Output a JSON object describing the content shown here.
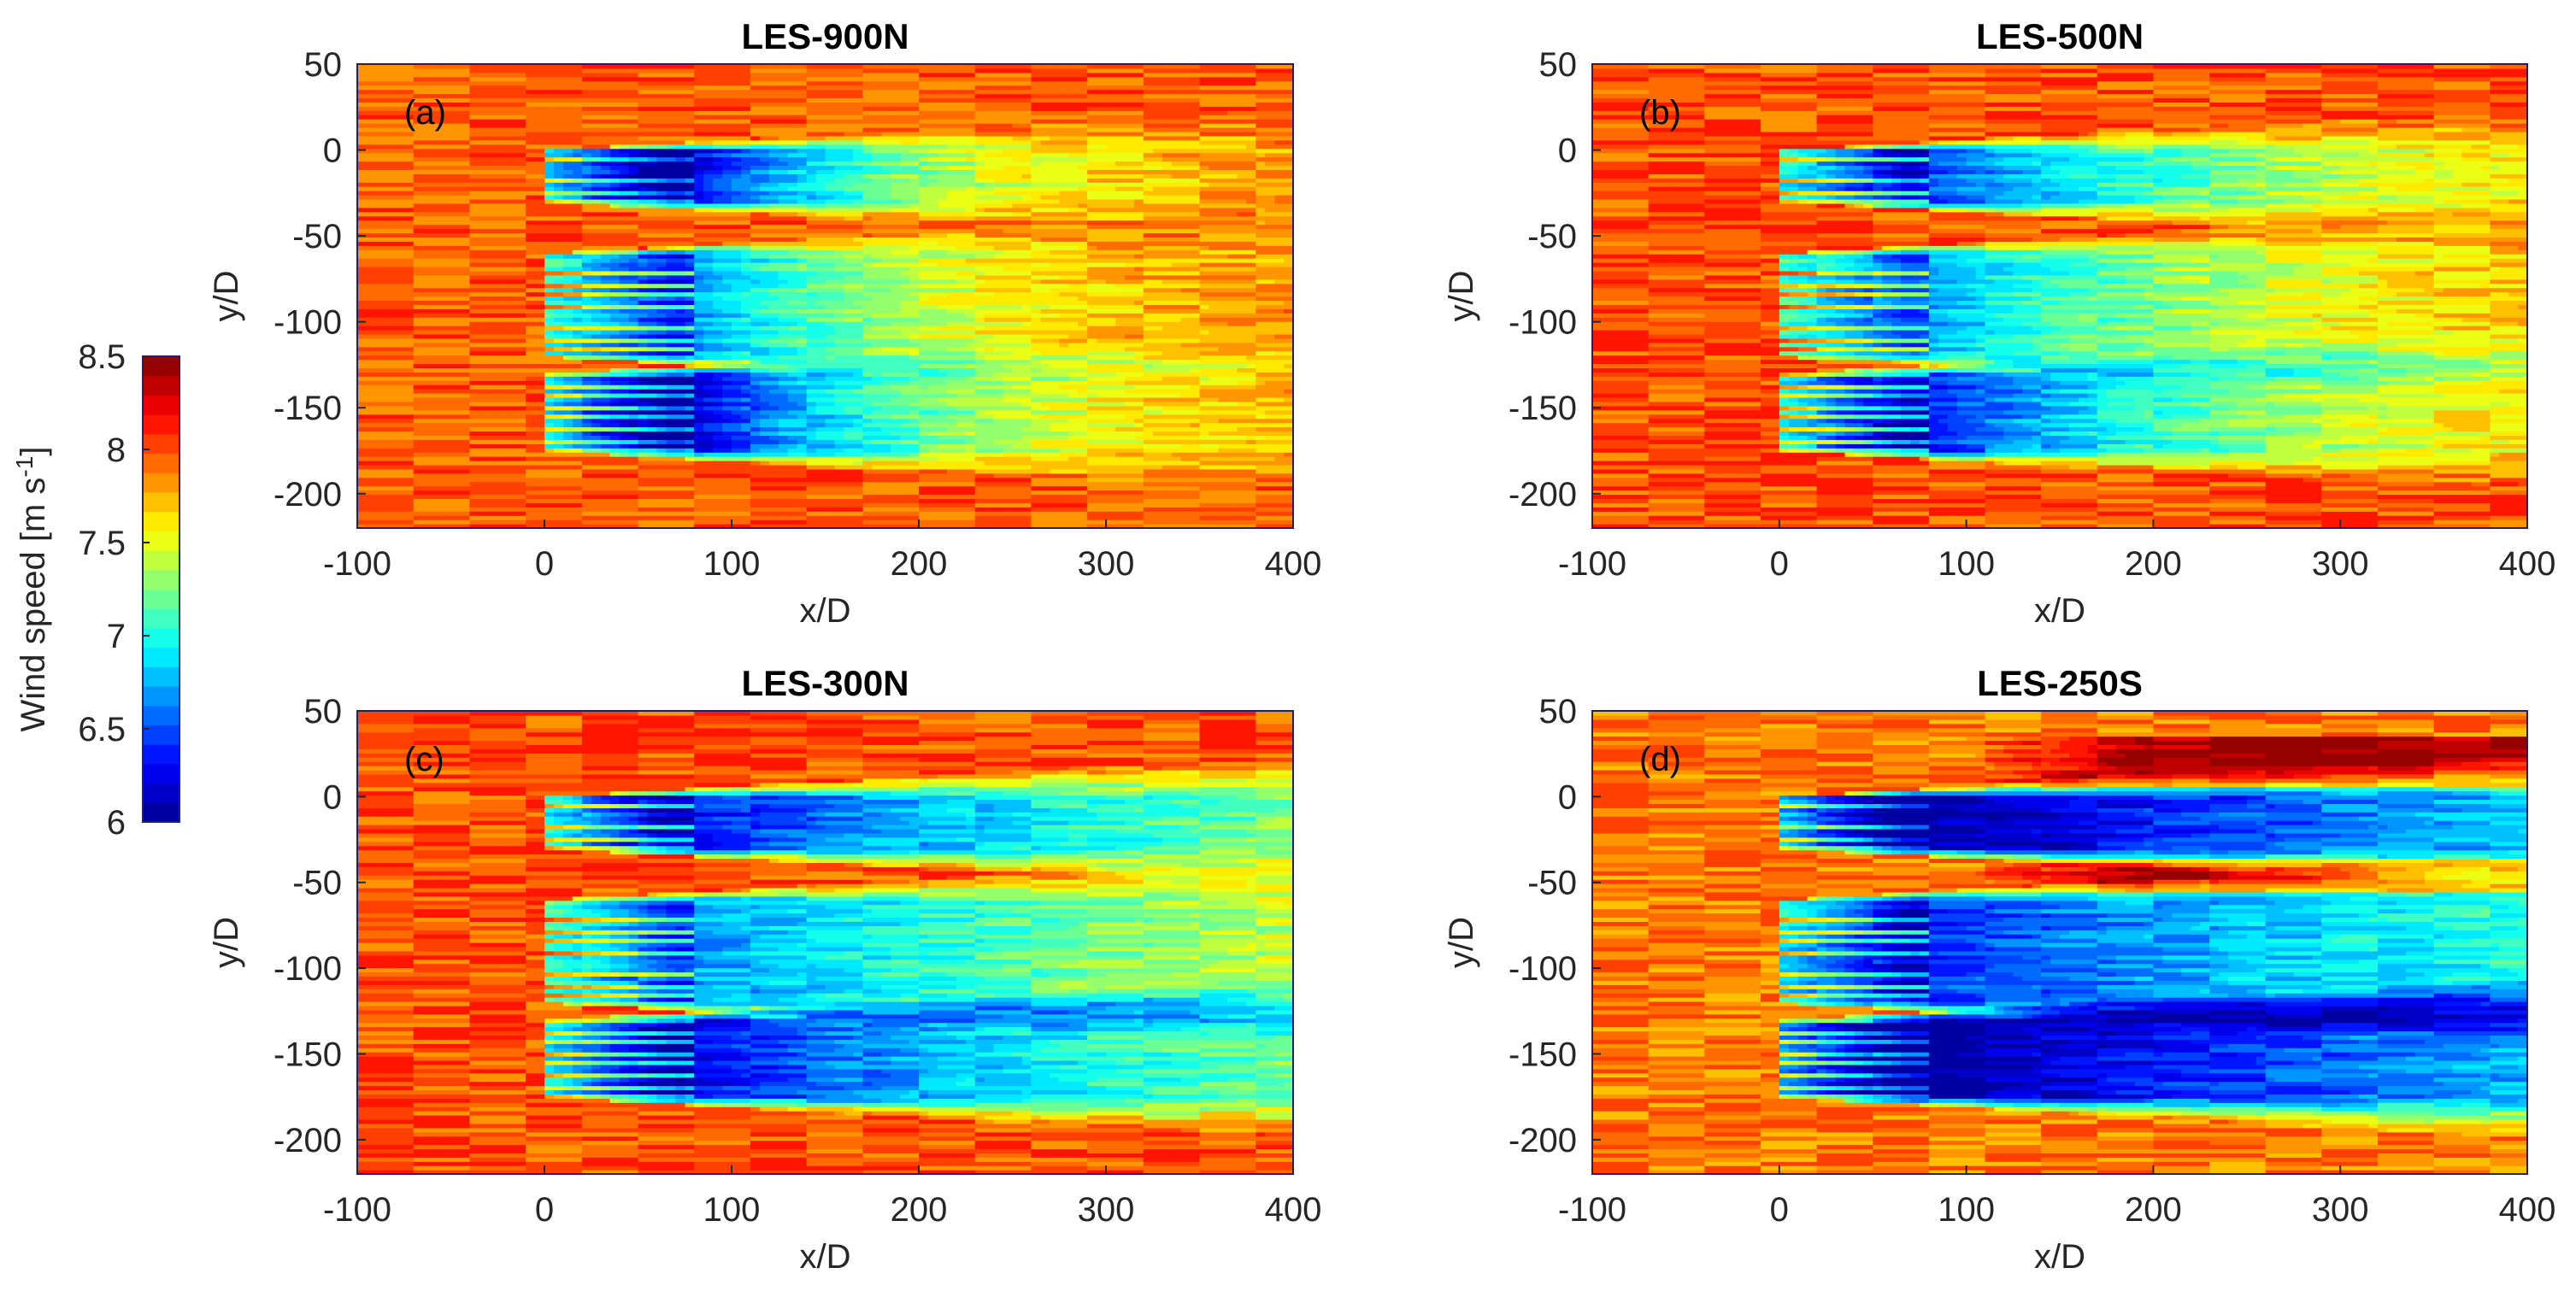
{
  "chart_data": [
    {
      "type": "heatmap",
      "panel": "(a)",
      "title": "LES-900N",
      "xlabel": "x/D",
      "ylabel": "y/D",
      "xlim": [
        -100,
        400
      ],
      "ylim": [
        -220,
        50
      ],
      "xticks": [
        "-100",
        "0",
        "100",
        "200",
        "300",
        "400"
      ],
      "yticks": [
        "50",
        "0",
        "-50",
        "-100",
        "-150",
        "-200"
      ],
      "z_description": "Wind speed [m s-1]; turbine arrays start at x/D=0; wakes recover to ~7.5 by x/D~250",
      "background_level": 7.95,
      "wakes": [
        {
          "y_range": [
            -30,
            0
          ],
          "depth": 1.85,
          "recovery": 130,
          "row_spacing": 4
        },
        {
          "y_range": [
            -120,
            -60
          ],
          "depth": 1.35,
          "recovery": 140,
          "row_spacing": 4
        },
        {
          "y_range": [
            -175,
            -130
          ],
          "depth": 1.85,
          "recovery": 150,
          "row_spacing": 4
        }
      ]
    },
    {
      "type": "heatmap",
      "panel": "(b)",
      "title": "LES-500N",
      "xlabel": "x/D",
      "ylabel": "y/D",
      "xlim": [
        -100,
        400
      ],
      "ylim": [
        -220,
        50
      ],
      "xticks": [
        "-100",
        "0",
        "100",
        "200",
        "300",
        "400"
      ],
      "yticks": [
        "50",
        "0",
        "-50",
        "-100",
        "-150",
        "-200"
      ],
      "z_description": "Wind speed [m s-1]; wakes persist to ~7.4 beyond x/D=400",
      "background_level": 8.0,
      "wakes": [
        {
          "y_range": [
            -30,
            0
          ],
          "depth": 1.6,
          "recovery": 230,
          "row_spacing": 4
        },
        {
          "y_range": [
            -120,
            -60
          ],
          "depth": 1.3,
          "recovery": 230,
          "row_spacing": 4
        },
        {
          "y_range": [
            -175,
            -130
          ],
          "depth": 1.7,
          "recovery": 230,
          "row_spacing": 4
        }
      ]
    },
    {
      "type": "heatmap",
      "panel": "(c)",
      "title": "LES-300N",
      "xlabel": "x/D",
      "ylabel": "y/D",
      "xlim": [
        -100,
        400
      ],
      "ylim": [
        -220,
        50
      ],
      "xticks": [
        "-100",
        "0",
        "100",
        "200",
        "300",
        "400"
      ],
      "yticks": [
        "50",
        "0",
        "-50",
        "-100",
        "-150",
        "-200"
      ],
      "z_description": "Wind speed [m s-1]; wakes persist near 7.0-7.2 to x/D=400",
      "background_level": 8.0,
      "wakes": [
        {
          "y_range": [
            -30,
            0
          ],
          "depth": 1.7,
          "recovery": 400,
          "row_spacing": 4
        },
        {
          "y_range": [
            -120,
            -60
          ],
          "depth": 1.35,
          "recovery": 400,
          "row_spacing": 4
        },
        {
          "y_range": [
            -175,
            -130
          ],
          "depth": 1.75,
          "recovery": 400,
          "row_spacing": 4
        }
      ]
    },
    {
      "type": "heatmap",
      "panel": "(d)",
      "title": "LES-250S",
      "xlabel": "x/D",
      "ylabel": "y/D",
      "xlim": [
        -100,
        400
      ],
      "ylim": [
        -220,
        50
      ],
      "xticks": [
        "-100",
        "0",
        "100",
        "200",
        "300",
        "400"
      ],
      "yticks": [
        "50",
        "0",
        "-50",
        "-100",
        "-150",
        "-200"
      ],
      "z_description": "Wind speed [m s-1]; deep wakes (~6.5-7.0) to x/D=400, speed-up bands of ~8.5 between wakes",
      "background_level": 7.9,
      "wakes": [
        {
          "y_range": [
            -30,
            0
          ],
          "depth": 1.9,
          "recovery": 600,
          "row_spacing": 4
        },
        {
          "y_range": [
            -120,
            -60
          ],
          "depth": 1.5,
          "recovery": 600,
          "row_spacing": 4
        },
        {
          "y_range": [
            -175,
            -130
          ],
          "depth": 1.95,
          "recovery": 600,
          "row_spacing": 4
        }
      ]
    }
  ],
  "colorbar": {
    "label": "Wind speed [m s",
    "label_superscript": "-1",
    "label_close": "]",
    "ticks": [
      "8.5",
      "8",
      "7.5",
      "7",
      "6.5",
      "6"
    ],
    "range": [
      6,
      8.5
    ],
    "levels": 24,
    "colormap": [
      "#00008f",
      "#0000ff",
      "#0080ff",
      "#00ffff",
      "#80ff80",
      "#ffff00",
      "#ff8000",
      "#ff0000",
      "#800000"
    ]
  }
}
